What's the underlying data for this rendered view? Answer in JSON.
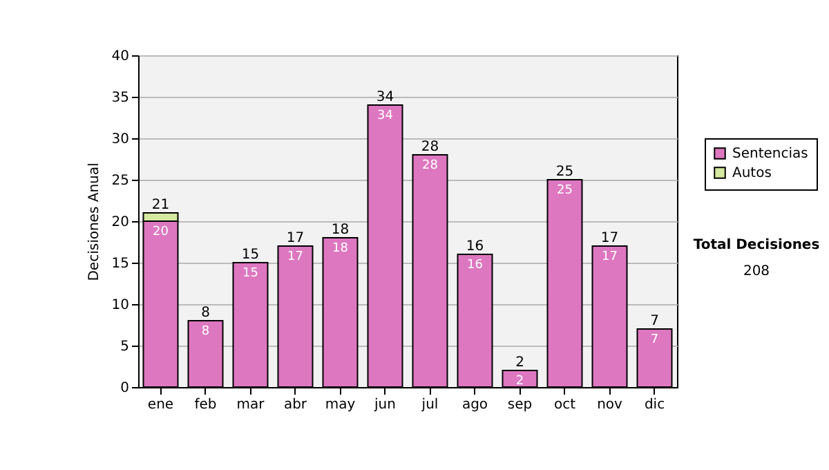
{
  "chart_data": {
    "type": "bar",
    "stacked": true,
    "ylabel": "Decisiones Anual",
    "categories": [
      "ene",
      "feb",
      "mar",
      "abr",
      "may",
      "jun",
      "jul",
      "ago",
      "sep",
      "oct",
      "nov",
      "dic"
    ],
    "series": [
      {
        "name": "Sentencias",
        "color": "#dd77c0",
        "values": [
          20,
          8,
          15,
          17,
          18,
          34,
          28,
          16,
          2,
          25,
          17,
          7
        ],
        "value_labels": [
          "20",
          "8",
          "15",
          "17",
          "18",
          "34",
          "28",
          "16",
          "2",
          "25",
          "17",
          "7"
        ]
      },
      {
        "name": "Autos",
        "color": "#d4e8a0",
        "values": [
          1,
          null,
          null,
          null,
          null,
          null,
          null,
          null,
          null,
          null,
          null,
          null
        ]
      }
    ],
    "totals": [
      "21",
      "8",
      "15",
      "17",
      "18",
      "34",
      "28",
      "16",
      "2",
      "25",
      "17",
      "7"
    ],
    "ylim": [
      0,
      40
    ],
    "yticks": [
      0,
      5,
      10,
      15,
      20,
      25,
      30,
      35,
      40
    ],
    "grid": "y",
    "legend": "right",
    "annotations": [
      "Total Decisiones",
      "208"
    ]
  }
}
